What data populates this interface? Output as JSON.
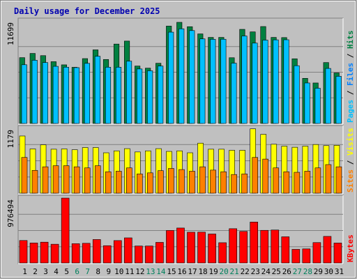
{
  "chart_data": {
    "type": "bar",
    "title": "Daily usage for December 2025",
    "x": [
      "1",
      "2",
      "3",
      "4",
      "5",
      "6",
      "7",
      "8",
      "9",
      "10",
      "11",
      "12",
      "13",
      "14",
      "15",
      "16",
      "17",
      "18",
      "19",
      "20",
      "21",
      "22",
      "23",
      "24",
      "25",
      "26",
      "27",
      "28",
      "29",
      "30",
      "31"
    ],
    "weekend_days": [
      "6",
      "7",
      "13",
      "14",
      "20",
      "21",
      "27",
      "28"
    ],
    "colors": {
      "hits": "#008040",
      "files": "#00c0ff",
      "pages": "#00c0ff",
      "visits": "#ffff00",
      "sites": "#ff8000",
      "kbytes": "#ff0000",
      "weekday_label": "#000000",
      "weekend_label": "#00805c",
      "title": "#0000b0"
    },
    "panels": [
      {
        "name": "hits-panel",
        "max_label": "11699",
        "max": 11699,
        "legend": [
          {
            "text": "Pages",
            "color": "#00c0ff"
          },
          {
            "text": " / ",
            "color": "#000000"
          },
          {
            "text": "Files",
            "color": "#0080ff"
          },
          {
            "text": " / ",
            "color": "#000000"
          },
          {
            "text": "Hits",
            "color": "#008040"
          }
        ],
        "series": [
          {
            "name": "Hits",
            "color": "#008040",
            "values": [
              7510,
              7990,
              7740,
              7050,
              6690,
              6410,
              7400,
              8400,
              7300,
              9060,
              9400,
              6550,
              6310,
              6870,
              11110,
              11540,
              11040,
              10220,
              9820,
              9820,
              7500,
              10740,
              10450,
              11060,
              9820,
              9800,
              7380,
              5150,
              4620,
              6950,
              5770
            ]
          },
          {
            "name": "Files",
            "color": "#00c0ff",
            "values": [
              6700,
              7210,
              6950,
              6520,
              6420,
              6370,
              6860,
              7670,
              6420,
              6420,
              7110,
              6220,
              6010,
              6550,
              10420,
              10800,
              10600,
              9650,
              9600,
              9610,
              6880,
              9980,
              9170,
              9510,
              9540,
              9550,
              6590,
              4620,
              4020,
              6280,
              5380
            ]
          },
          {
            "name": "Pages",
            "color": "#00c0ff",
            "values": [
              0,
              0,
              0,
              0,
              0,
              0,
              0,
              0,
              0,
              0,
              0,
              0,
              0,
              0,
              0,
              0,
              0,
              0,
              0,
              0,
              0,
              0,
              0,
              0,
              0,
              0,
              0,
              0,
              0,
              0,
              0
            ]
          }
        ]
      },
      {
        "name": "visits-panel",
        "max_label": "1179",
        "max": 1179,
        "legend": [
          {
            "text": "Sites",
            "color": "#ff8000"
          },
          {
            "text": " / ",
            "color": "#000000"
          },
          {
            "text": "Visits",
            "color": "#ffff00"
          }
        ],
        "series": [
          {
            "name": "Visits",
            "color": "#ffff00",
            "values": [
              1040,
              805,
              880,
              800,
              805,
              790,
              830,
              830,
              735,
              770,
              810,
              750,
              770,
              810,
              760,
              770,
              735,
              910,
              800,
              800,
              780,
              780,
              1170,
              1070,
              890,
              855,
              835,
              855,
              885,
              865,
              870
            ]
          },
          {
            "name": "Sites",
            "color": "#ff8000",
            "values": [
              650,
              415,
              480,
              500,
              500,
              480,
              460,
              500,
              390,
              400,
              460,
              350,
              370,
              410,
              450,
              430,
              400,
              480,
              420,
              390,
              340,
              350,
              650,
              620,
              460,
              390,
              380,
              400,
              460,
              520,
              480
            ]
          }
        ]
      },
      {
        "name": "kbytes-panel",
        "max_label": "976494",
        "max": 976494,
        "legend": [
          {
            "text": "KBytes",
            "color": "#ff0000"
          }
        ],
        "series": [
          {
            "name": "KBytes",
            "color": "#ff0000",
            "values": [
              338000,
              301000,
              313000,
              282000,
              976494,
              290000,
              296000,
              353000,
              260000,
              337000,
              378000,
              255000,
              255000,
              310000,
              489000,
              526000,
              463000,
              464000,
              436000,
              305000,
              516000,
              475000,
              616000,
              491000,
              496000,
              394000,
              205000,
              212000,
              307000,
              400000,
              300000
            ]
          }
        ]
      }
    ]
  }
}
